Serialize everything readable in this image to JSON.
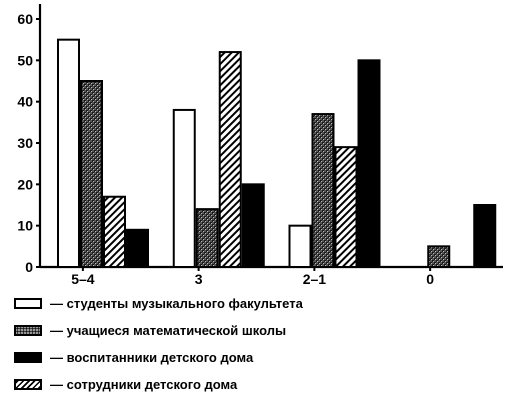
{
  "chart_data": {
    "type": "bar",
    "title": "",
    "xlabel": "",
    "ylabel": "",
    "ylim": [
      0,
      60
    ],
    "yticks": [
      0,
      10,
      20,
      30,
      40,
      50,
      60
    ],
    "categories": [
      "5–4",
      "3",
      "2–1",
      "0"
    ],
    "series": [
      {
        "name": "студенты музыкального факультета",
        "key": "students",
        "values": [
          55,
          38,
          10,
          0
        ]
      },
      {
        "name": "учащиеся математической школы",
        "key": "school",
        "values": [
          45,
          14,
          37,
          5
        ]
      },
      {
        "name": "сотрудники детского дома",
        "key": "staff",
        "values": [
          17,
          52,
          29,
          0
        ]
      },
      {
        "name": "воспитанники детского дома",
        "key": "orphans",
        "values": [
          9,
          20,
          50,
          15
        ]
      }
    ],
    "grid": false,
    "legend_position": "bottom"
  },
  "legend": [
    {
      "label": "— студенты музыкального факультета"
    },
    {
      "label": "— учащиеся математической школы"
    },
    {
      "label": "— воспитанники детского дома"
    },
    {
      "label": "— сотрудники детского дома"
    }
  ]
}
